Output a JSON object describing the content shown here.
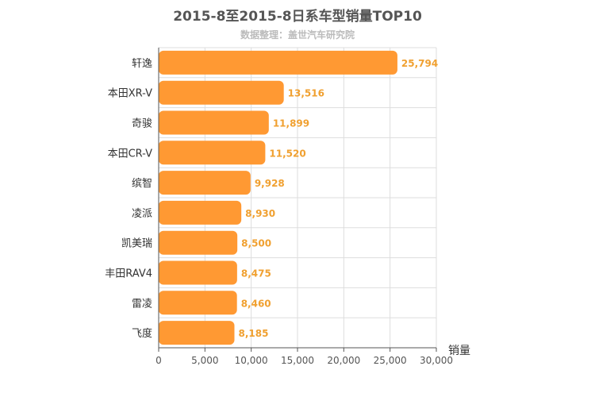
{
  "chart_data": {
    "type": "bar",
    "orientation": "horizontal",
    "title": "2015-8至2015-8日系车型销量TOP10",
    "subtitle": "数据整理：盖世汽车研究院",
    "xlabel": "销量",
    "ylabel": "",
    "categories": [
      "轩逸",
      "本田XR-V",
      "奇骏",
      "本田CR-V",
      "缤智",
      "凌派",
      "凯美瑞",
      "丰田RAV4",
      "雷凌",
      "飞度"
    ],
    "values": [
      25794,
      13516,
      11899,
      11520,
      9928,
      8930,
      8500,
      8475,
      8460,
      8185
    ],
    "value_labels": [
      "25,794",
      "13,516",
      "11,899",
      "11,520",
      "9,928",
      "8,930",
      "8,500",
      "8,475",
      "8,460",
      "8,185"
    ],
    "xlim": [
      0,
      30000
    ],
    "ticks": [
      0,
      5000,
      10000,
      15000,
      20000,
      25000,
      30000
    ],
    "tick_labels": [
      "0",
      "5,000",
      "10,000",
      "15,000",
      "20,000",
      "25,000",
      "30,000"
    ],
    "grid": true,
    "legend": "none",
    "colors": {
      "bar": "#ff9933",
      "value_label": "#f0a030",
      "grid": "#dddddd",
      "axis": "#555555"
    }
  }
}
